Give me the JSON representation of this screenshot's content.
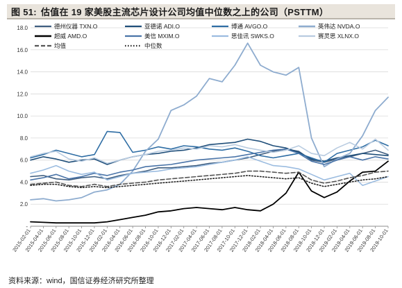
{
  "header": {
    "figure_number": "图 51:",
    "title": "估值在 19 家美股主流芯片设计公司均值中位数之上的公司（PSTTM）"
  },
  "footer": {
    "source": "资料来源：wind，国信证券经济研究所整理"
  },
  "colors": {
    "title_bg": "#e9e4dc",
    "grid": "#d9d9d9"
  },
  "chart_data": {
    "type": "line",
    "title": "",
    "xlabel": "",
    "ylabel": "",
    "ylim": [
      0,
      18
    ],
    "yticks": [
      0,
      2,
      4,
      6,
      8,
      10,
      12,
      14,
      16,
      18
    ],
    "ytick_labels": [
      "-",
      "2.0",
      "4.0",
      "6.0",
      "8.0",
      "10.0",
      "12.0",
      "14.0",
      "16.0",
      "18.0"
    ],
    "grid": true,
    "legend_position": "top",
    "x": [
      "2015-02-01",
      "2015-04-01",
      "2015-06-01",
      "2015-08-01",
      "2015-10-01",
      "2015-12-01",
      "2016-02-01",
      "2016-04-01",
      "2016-06-01",
      "2016-08-01",
      "2016-10-01",
      "2016-12-01",
      "2017-02-01",
      "2017-04-01",
      "2017-06-01",
      "2017-08-01",
      "2017-10-01",
      "2017-12-01",
      "2018-02-01",
      "2018-04-01",
      "2018-06-01",
      "2018-08-01",
      "2018-10-01",
      "2018-12-01",
      "2019-02-01",
      "2019-04-01",
      "2019-06-01",
      "2019-08-01",
      "2019-10-01"
    ],
    "series": [
      {
        "name": "德州仪器  TXN.O",
        "color": "#3f5e80",
        "width": 1.6,
        "dash": "",
        "values": [
          4.5,
          4.6,
          4.3,
          4.2,
          4.4,
          4.5,
          4.3,
          4.6,
          4.8,
          5.0,
          5.3,
          5.3,
          5.4,
          5.5,
          5.7,
          5.8,
          6.0,
          6.2,
          6.5,
          6.8,
          7.0,
          6.8,
          6.0,
          5.8,
          6.1,
          6.3,
          6.6,
          6.9,
          6.5
        ]
      },
      {
        "name": "亚德诺  ADI.O",
        "color": "#1f4e79",
        "width": 1.6,
        "dash": "",
        "values": [
          6.0,
          6.3,
          6.1,
          5.8,
          6.0,
          6.1,
          5.6,
          6.0,
          6.3,
          6.5,
          6.6,
          6.8,
          6.9,
          7.1,
          7.4,
          7.5,
          7.6,
          7.9,
          7.7,
          7.3,
          7.1,
          6.7,
          6.1,
          5.9,
          6.2,
          6.4,
          6.6,
          6.5,
          6.4
        ]
      },
      {
        "name": "博通  AVGO.O",
        "color": "#2e6da4",
        "width": 1.6,
        "dash": "",
        "values": [
          6.2,
          6.5,
          6.9,
          6.6,
          6.3,
          6.5,
          8.6,
          8.5,
          6.7,
          6.9,
          7.2,
          7.0,
          7.3,
          7.2,
          7.0,
          6.9,
          7.1,
          6.8,
          6.4,
          6.2,
          6.4,
          6.6,
          6.2,
          5.8,
          6.6,
          6.9,
          7.2,
          7.8,
          7.3
        ]
      },
      {
        "name": "英伟达  NVDA.O",
        "color": "#8eaccf",
        "width": 1.8,
        "dash": "",
        "values": [
          2.4,
          2.5,
          2.3,
          2.4,
          2.6,
          3.1,
          3.3,
          3.8,
          5.0,
          6.8,
          7.9,
          10.5,
          11.0,
          11.8,
          13.4,
          13.1,
          14.6,
          16.6,
          14.6,
          14.0,
          13.7,
          14.4,
          8.0,
          5.4,
          6.1,
          6.6,
          8.2,
          10.5,
          11.7
        ]
      },
      {
        "name": "超威  AMD.O",
        "color": "#000000",
        "width": 1.8,
        "dash": "",
        "values": [
          0.4,
          0.35,
          0.3,
          0.3,
          0.3,
          0.3,
          0.4,
          0.6,
          0.8,
          1.0,
          1.3,
          1.4,
          1.6,
          1.7,
          1.6,
          1.5,
          1.7,
          1.5,
          1.4,
          2.0,
          3.0,
          4.9,
          3.2,
          2.6,
          3.1,
          4.1,
          4.9,
          5.0,
          5.9
        ]
      },
      {
        "name": "美信  MXIM.O",
        "color": "#4a74a8",
        "width": 1.6,
        "dash": "",
        "values": [
          4.2,
          4.4,
          4.7,
          4.3,
          4.5,
          4.8,
          4.6,
          4.9,
          5.1,
          5.4,
          5.5,
          5.6,
          5.8,
          6.0,
          6.1,
          6.2,
          6.3,
          6.5,
          6.7,
          6.9,
          7.0,
          6.6,
          5.9,
          5.6,
          6.0,
          6.3,
          6.0,
          6.3,
          6.1
        ]
      },
      {
        "name": "思佳讯  SWKS.O",
        "color": "#9bbce0",
        "width": 1.6,
        "dash": "",
        "values": [
          4.8,
          5.1,
          5.5,
          5.0,
          4.7,
          4.9,
          4.2,
          4.5,
          4.8,
          4.9,
          5.0,
          5.2,
          5.3,
          5.4,
          5.6,
          5.8,
          6.0,
          6.3,
          5.9,
          5.5,
          5.4,
          5.2,
          4.7,
          4.2,
          4.5,
          4.8,
          3.7,
          4.1,
          4.5
        ]
      },
      {
        "name": "赛灵思  XLNX.O",
        "color": "#b8cbe0",
        "width": 1.6,
        "dash": "",
        "values": [
          6.3,
          6.6,
          6.8,
          6.1,
          5.9,
          6.2,
          5.7,
          6.0,
          6.3,
          6.5,
          6.8,
          6.9,
          7.1,
          7.0,
          7.3,
          7.2,
          7.4,
          7.1,
          6.9,
          6.7,
          6.9,
          7.3,
          6.6,
          6.4,
          7.1,
          7.6,
          7.0,
          7.9,
          6.9
        ]
      },
      {
        "name": "均值",
        "color": "#555555",
        "width": 1.6,
        "dash": "6,3",
        "values": [
          3.8,
          3.9,
          4.0,
          3.7,
          3.6,
          3.8,
          3.6,
          3.8,
          3.9,
          4.0,
          4.2,
          4.3,
          4.4,
          4.5,
          4.6,
          4.7,
          4.8,
          5.0,
          5.0,
          4.9,
          4.8,
          4.9,
          4.2,
          3.9,
          4.1,
          4.4,
          4.6,
          4.9,
          5.0
        ]
      },
      {
        "name": "中位数",
        "color": "#222222",
        "width": 1.6,
        "dash": "1.5,2.5",
        "values": [
          3.7,
          3.8,
          3.8,
          3.6,
          3.5,
          3.6,
          3.5,
          3.6,
          3.7,
          3.8,
          3.9,
          4.0,
          4.1,
          4.2,
          4.3,
          4.4,
          4.5,
          4.6,
          4.5,
          4.4,
          4.3,
          4.4,
          3.9,
          3.6,
          3.8,
          4.0,
          4.2,
          4.3,
          4.5
        ]
      }
    ]
  }
}
